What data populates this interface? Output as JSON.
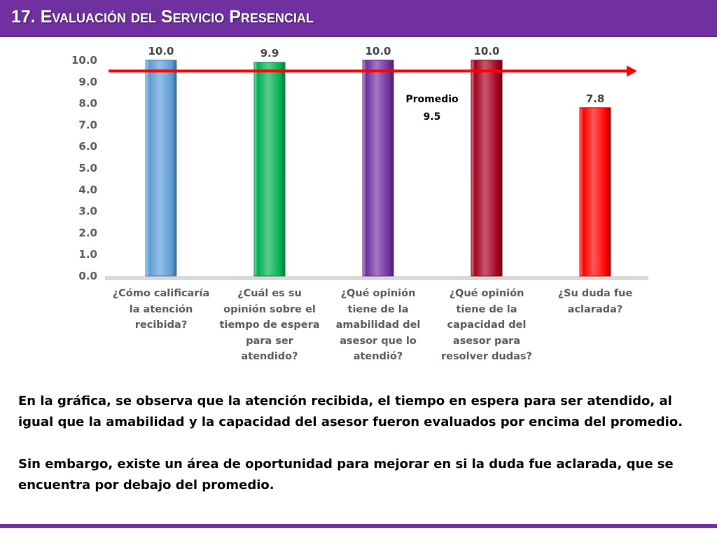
{
  "header": {
    "title": "17. Evaluación del Servicio Presencial"
  },
  "colors": {
    "accent": "#7030a0",
    "average_line": "#ff0000"
  },
  "chart_data": {
    "type": "bar",
    "categories": [
      "¿Cómo calificaría la atención recibida?",
      "¿Cuál es su opinión sobre el tiempo de espera para ser atendido?",
      "¿Qué opinión tiene de la amabilidad del asesor que lo atendió?",
      "¿Qué opinión tiene de la capacidad del asesor para resolver dudas?",
      "¿Su duda fue aclarada?"
    ],
    "category_lines": [
      [
        "¿Cómo calificaría",
        "la atención",
        "recibida?"
      ],
      [
        "¿Cuál es su",
        "opinión sobre el",
        "tiempo de espera",
        "para ser",
        "atendido?"
      ],
      [
        "¿Qué opinión",
        "tiene de la",
        "amabilidad del",
        "asesor que lo",
        "atendió?"
      ],
      [
        "¿Qué opinión",
        "tiene de la",
        "capacidad del",
        "asesor para",
        "resolver dudas?"
      ],
      [
        "¿Su duda fue",
        "aclarada?"
      ]
    ],
    "values": [
      10.0,
      9.9,
      10.0,
      10.0,
      7.8
    ],
    "value_labels": [
      "10.0",
      "9.9",
      "10.0",
      "10.0",
      "7.8"
    ],
    "bar_colors": [
      "#5b9bd5",
      "#00b050",
      "#7030a0",
      "#a50021",
      "#ff0000"
    ],
    "ylim": [
      0,
      10
    ],
    "yticks": [
      "0.0",
      "1.0",
      "2.0",
      "3.0",
      "4.0",
      "5.0",
      "6.0",
      "7.0",
      "8.0",
      "9.0",
      "10.0"
    ],
    "average": {
      "value": 9.5,
      "label": "Promedio",
      "value_label": "9.5"
    },
    "xlabel": "",
    "ylabel": "",
    "grid": false,
    "legend": "none"
  },
  "paragraphs": [
    "En la gráfica, se observa que la atención recibida, el tiempo en espera para ser atendido, al igual que la amabilidad y la capacidad del asesor fueron evaluados por encima del promedio.",
    "Sin embargo, existe un área de oportunidad para mejorar en si la duda fue aclarada, que se encuentra por debajo del promedio."
  ]
}
